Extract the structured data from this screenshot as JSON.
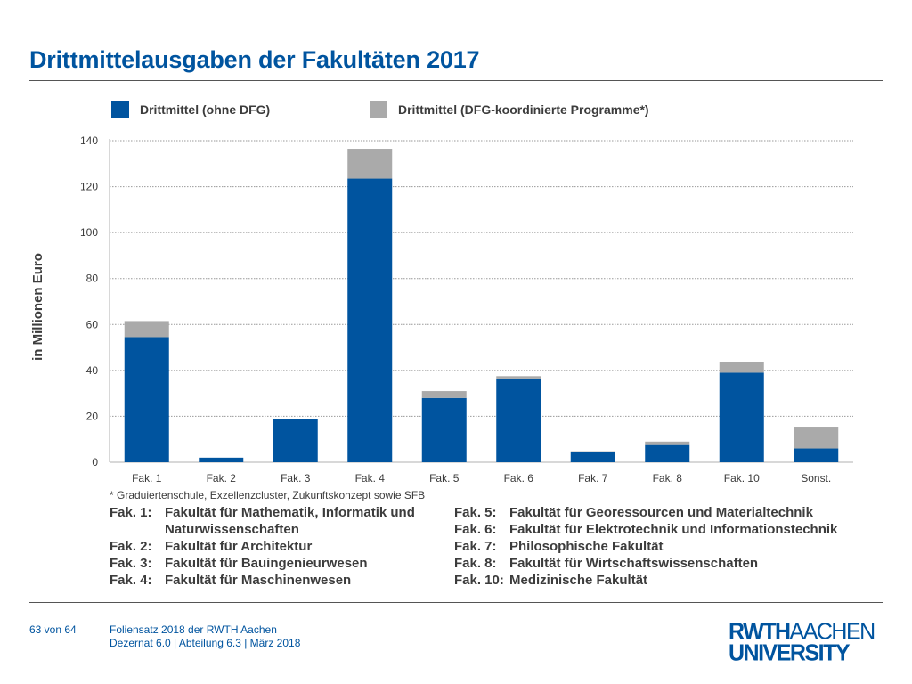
{
  "header": {
    "title": "Drittmittelausgaben der Fakultäten 2017"
  },
  "chart_data": {
    "type": "bar",
    "stacked": true,
    "categories": [
      "Fak. 1",
      "Fak. 2",
      "Fak. 3",
      "Fak. 4",
      "Fak. 5",
      "Fak. 6",
      "Fak. 7",
      "Fak. 8",
      "Fak. 10",
      "Sonst."
    ],
    "series": [
      {
        "name": "Drittmittel (ohne DFG)",
        "color": "#00549f",
        "values": [
          54.5,
          2.0,
          19.0,
          123.5,
          28.0,
          36.5,
          4.5,
          7.5,
          39.0,
          6.0
        ]
      },
      {
        "name": "Drittmittel (DFG-koordinierte Programme*)",
        "color": "#aaaaaa",
        "values": [
          7.0,
          0.0,
          0.0,
          13.0,
          3.0,
          1.0,
          0.3,
          1.5,
          4.5,
          9.5
        ]
      }
    ],
    "ylabel": "in Millionen Euro",
    "xlabel": "",
    "ylim": [
      0,
      140
    ],
    "yticks": [
      0,
      20,
      40,
      60,
      80,
      100,
      120,
      140
    ],
    "grid": true,
    "legend_position": "top"
  },
  "footnote": "* Graduiertenschule, Exzellenzcluster, Zukunftskonzept sowie SFB",
  "faculty_legend": {
    "left": [
      {
        "code": "Fak.   1:",
        "name": "Fakultät für Mathematik, Informatik und Naturwissenschaften"
      },
      {
        "code": "Fak.   2:",
        "name": "Fakultät für Architektur"
      },
      {
        "code": "Fak.   3:",
        "name": "Fakultät für Bauingenieurwesen"
      },
      {
        "code": "Fak.   4:",
        "name": "Fakultät für Maschinenwesen"
      }
    ],
    "right": [
      {
        "code": "Fak.   5:",
        "name": "Fakultät für Georessourcen und Materialtechnik"
      },
      {
        "code": "Fak.   6:",
        "name": "Fakultät für Elektrotechnik und Informationstechnik"
      },
      {
        "code": "Fak.   7:",
        "name": "Philosophische Fakultät"
      },
      {
        "code": "Fak.   8:",
        "name": "Fakultät für Wirtschaftswissenschaften"
      },
      {
        "code": "Fak. 10:",
        "name": "Medizinische Fakultät"
      }
    ]
  },
  "footer": {
    "page": "63 von 64",
    "line1": "Foliensatz 2018 der RWTH Aachen",
    "line2": "Dezernat 6.0 | Abteilung 6.3 | März 2018"
  },
  "logo": {
    "line1_bold": "RWTH",
    "line1_thin": "AACHEN",
    "line2": "UNIVERSITY"
  },
  "colors": {
    "brand_blue": "#00549f",
    "gray": "#aaaaaa"
  }
}
